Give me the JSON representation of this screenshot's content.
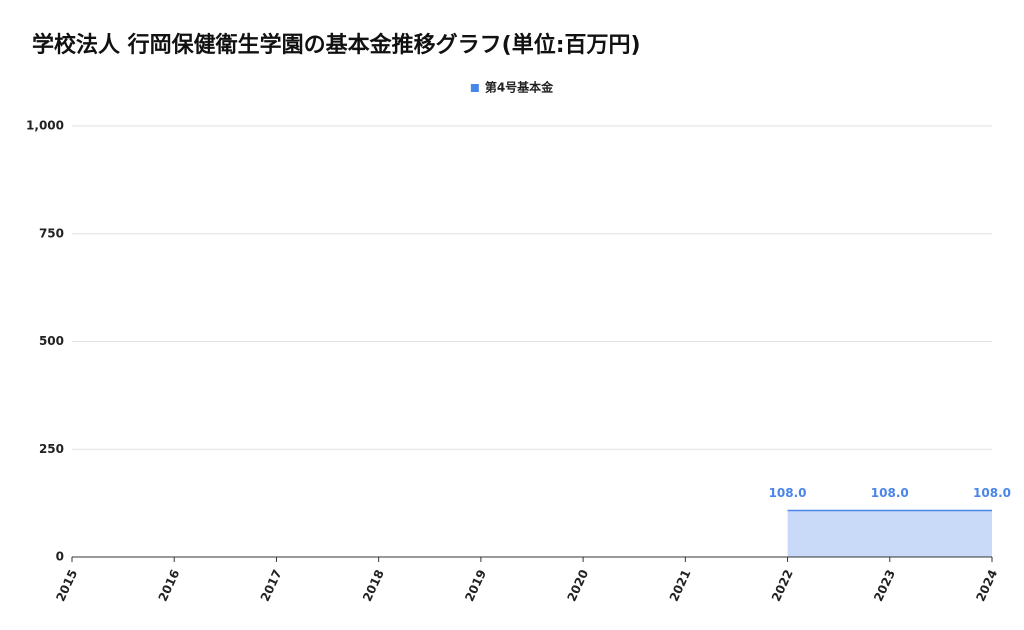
{
  "chart_data": {
    "type": "area",
    "title": "学校法人 行岡保健衛生学園の基本金推移グラフ(単位:百万円)",
    "series": [
      {
        "name": "第4号基本金",
        "color": "#4a86e8",
        "fill": "#c9daf8",
        "x": [
          2022,
          2023,
          2024
        ],
        "values": [
          108,
          108,
          108
        ],
        "value_labels": [
          "108.0",
          "108.0",
          "108.0"
        ]
      }
    ],
    "xlim": [
      2015,
      2024
    ],
    "xticks": [
      2015,
      2016,
      2017,
      2018,
      2019,
      2020,
      2021,
      2022,
      2023,
      2024
    ],
    "ylim": [
      0,
      1000
    ],
    "yticks": [
      0,
      250,
      500,
      750,
      {
        "value": 1000,
        "label": "1,000"
      }
    ],
    "grid": true,
    "legend": "top"
  }
}
